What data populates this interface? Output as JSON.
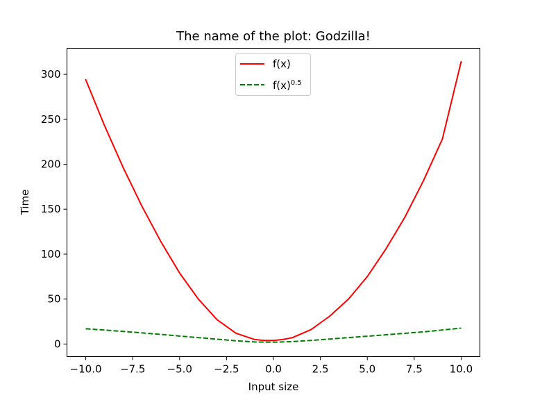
{
  "chart_data": {
    "type": "line",
    "title": "The name of the plot: Godzilla!",
    "xlabel": "Input size",
    "ylabel": "Time",
    "xlim": [
      -11,
      11
    ],
    "ylim": [
      -14,
      329
    ],
    "x_ticks": [
      -10.0,
      -7.5,
      -5.0,
      -2.5,
      0.0,
      2.5,
      5.0,
      7.5,
      10.0
    ],
    "x_tick_labels": [
      "−10.0",
      "−7.5",
      "−5.0",
      "−2.5",
      "0.0",
      "2.5",
      "5.0",
      "7.5",
      "10.0"
    ],
    "y_ticks": [
      0,
      50,
      100,
      150,
      200,
      250,
      300
    ],
    "y_tick_labels": [
      "0",
      "50",
      "100",
      "150",
      "200",
      "250",
      "300"
    ],
    "grid": false,
    "legend_position": "top-center",
    "series": [
      {
        "name": "f(x)",
        "color": "#ff0000",
        "style": "solid",
        "x": [
          -10.0,
          -9.0,
          -8.0,
          -7.0,
          -6.0,
          -5.0,
          -4.0,
          -3.0,
          -2.0,
          -1.0,
          -0.5,
          0.0,
          0.5,
          1.0,
          2.0,
          3.0,
          4.0,
          5.0,
          6.0,
          7.0,
          8.0,
          9.0,
          10.0
        ],
        "y": [
          294,
          243,
          196,
          153,
          114,
          79,
          50,
          27,
          12,
          5,
          4,
          4,
          5,
          7,
          16,
          31,
          50,
          75,
          106,
          141,
          182,
          228,
          314
        ]
      },
      {
        "name": "f(x)",
        "name_superscript": "0.5",
        "color": "#008000",
        "style": "dashed",
        "x": [
          -10.0,
          -8.0,
          -6.0,
          -4.0,
          -2.0,
          -1.0,
          0.0,
          1.0,
          2.0,
          4.0,
          6.0,
          8.0,
          10.0
        ],
        "y": [
          17,
          14,
          10.7,
          7.1,
          3.6,
          2.3,
          2,
          2.7,
          4,
          7.1,
          10.3,
          13.5,
          17.7
        ]
      }
    ]
  }
}
